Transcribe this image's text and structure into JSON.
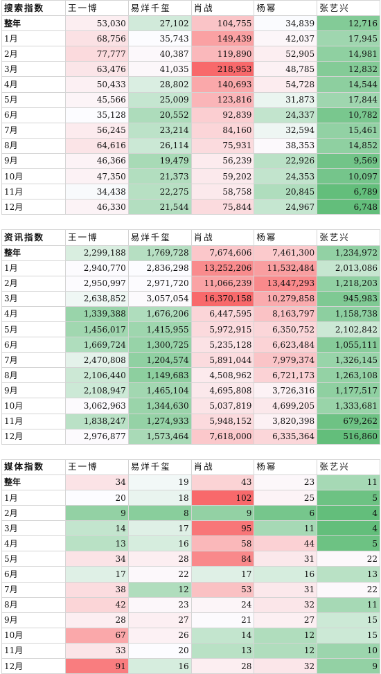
{
  "columns": [
    "王一博",
    "易烊千玺",
    "肖战",
    "杨幂",
    "张艺兴"
  ],
  "row_labels": [
    "整年",
    "1月",
    "2月",
    "3月",
    "4月",
    "5月",
    "6月",
    "7月",
    "8月",
    "9月",
    "10月",
    "11月",
    "12月"
  ],
  "colors": {
    "high": "#f8696b",
    "mid": "#fcfcff",
    "low": "#63be7b"
  },
  "sections": [
    {
      "title": "搜索指数",
      "rows": [
        [
          "53,030",
          "27,102",
          "104,755",
          "34,839",
          "12,716"
        ],
        [
          "68,756",
          "35,743",
          "149,439",
          "42,037",
          "17,945"
        ],
        [
          "77,777",
          "40,387",
          "119,890",
          "52,905",
          "14,981"
        ],
        [
          "63,476",
          "41,035",
          "218,953",
          "48,785",
          "12,832"
        ],
        [
          "50,433",
          "28,802",
          "140,693",
          "54,728",
          "14,544"
        ],
        [
          "45,566",
          "25,009",
          "123,816",
          "31,873",
          "17,844"
        ],
        [
          "35,128",
          "20,552",
          "92,839",
          "24,337",
          "10,782"
        ],
        [
          "56,245",
          "23,214",
          "84,160",
          "32,594",
          "15,461"
        ],
        [
          "64,616",
          "26,114",
          "75,931",
          "38,353",
          "14,852"
        ],
        [
          "46,366",
          "19,479",
          "56,239",
          "22,926",
          "9,569"
        ],
        [
          "47,350",
          "21,373",
          "59,202",
          "24,353",
          "10,097"
        ],
        [
          "34,438",
          "22,275",
          "58,758",
          "20,845",
          "6,789"
        ],
        [
          "46,330",
          "21,544",
          "75,844",
          "24,967",
          "6,748"
        ]
      ]
    },
    {
      "title": "资讯指数",
      "rows": [
        [
          "2,299,188",
          "1,769,728",
          "7,674,606",
          "7,461,300",
          "1,234,972"
        ],
        [
          "2,940,770",
          "2,836,298",
          "13,252,206",
          "11,532,484",
          "2,013,086"
        ],
        [
          "2,950,997",
          "2,971,720",
          "11,066,239",
          "13,447,293",
          "1,218,203"
        ],
        [
          "2,638,852",
          "3,057,054",
          "16,370,158",
          "10,279,858",
          "945,983"
        ],
        [
          "1,339,388",
          "1,676,206",
          "6,447,595",
          "8,163,797",
          "1,158,738"
        ],
        [
          "1,456,017",
          "1,415,955",
          "5,972,915",
          "6,350,752",
          "2,102,842"
        ],
        [
          "1,669,724",
          "1,300,725",
          "5,235,128",
          "6,623,484",
          "1,055,111"
        ],
        [
          "2,470,808",
          "1,204,574",
          "5,891,044",
          "7,979,374",
          "1,326,145"
        ],
        [
          "2,106,440",
          "1,149,683",
          "4,508,962",
          "6,721,173",
          "1,263,108"
        ],
        [
          "2,108,947",
          "1,465,104",
          "4,695,808",
          "3,726,316",
          "1,177,517"
        ],
        [
          "3,062,963",
          "1,344,630",
          "5,037,819",
          "4,699,205",
          "1,333,681"
        ],
        [
          "1,838,247",
          "1,274,933",
          "5,948,152",
          "3,820,398",
          "679,262"
        ],
        [
          "2,976,877",
          "1,573,464",
          "7,618,000",
          "6,335,364",
          "516,860"
        ]
      ]
    },
    {
      "title": "媒体指数",
      "rows": [
        [
          "34",
          "19",
          "43",
          "23",
          "11"
        ],
        [
          "20",
          "18",
          "102",
          "25",
          "5"
        ],
        [
          "9",
          "8",
          "9",
          "6",
          "4"
        ],
        [
          "14",
          "17",
          "95",
          "11",
          "4"
        ],
        [
          "13",
          "16",
          "58",
          "44",
          "5"
        ],
        [
          "34",
          "28",
          "84",
          "31",
          "22"
        ],
        [
          "17",
          "22",
          "17",
          "16",
          "13"
        ],
        [
          "38",
          "12",
          "53",
          "31",
          "22"
        ],
        [
          "42",
          "23",
          "24",
          "32",
          "11"
        ],
        [
          "28",
          "27",
          "21",
          "27",
          "15"
        ],
        [
          "67",
          "26",
          "14",
          "12",
          "15"
        ],
        [
          "33",
          "20",
          "13",
          "12",
          "10"
        ],
        [
          "91",
          "16",
          "28",
          "32",
          "9"
        ]
      ]
    }
  ]
}
